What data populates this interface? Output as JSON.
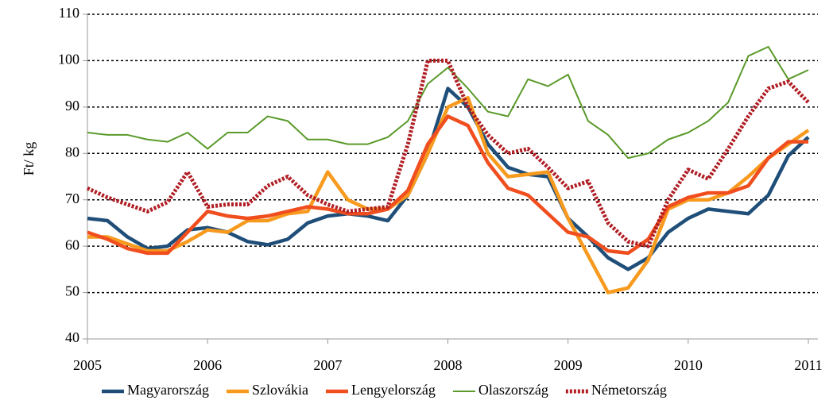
{
  "chart_data": {
    "type": "line",
    "y_label": "Ft/ kg",
    "x": [
      2005,
      2005.167,
      2005.333,
      2005.5,
      2005.667,
      2005.833,
      2006,
      2006.167,
      2006.333,
      2006.5,
      2006.667,
      2006.833,
      2007,
      2007.167,
      2007.333,
      2007.5,
      2007.667,
      2007.833,
      2008,
      2008.167,
      2008.333,
      2008.5,
      2008.667,
      2008.833,
      2009,
      2009.167,
      2009.333,
      2009.5,
      2009.667,
      2009.833,
      2010,
      2010.167,
      2010.333,
      2010.5,
      2010.667,
      2010.833,
      2011
    ],
    "series": [
      {
        "name": "Magyarország",
        "color": "#1f4e79",
        "width": 4.5,
        "style": "solid",
        "values": [
          66,
          65.5,
          62,
          59.5,
          60,
          63.5,
          64,
          63,
          61,
          60.3,
          61.5,
          65,
          66.5,
          67,
          66.5,
          65.5,
          71,
          80,
          94,
          90,
          82,
          77,
          75.5,
          75,
          66,
          62,
          57.5,
          55,
          57.5,
          63,
          66,
          68,
          67.5,
          67,
          71,
          79.5,
          83.5
        ]
      },
      {
        "name": "Szlovákia",
        "color": "#f79a1e",
        "width": 4.5,
        "style": "solid",
        "values": [
          62,
          62,
          60.5,
          59,
          59,
          61,
          63.5,
          63,
          65.5,
          65.5,
          67,
          67.5,
          76,
          70,
          68,
          68,
          71,
          80,
          90,
          92,
          80,
          75,
          75.5,
          76,
          66,
          58,
          50,
          51,
          57,
          68,
          70,
          70,
          71.5,
          75,
          79,
          82,
          85
        ]
      },
      {
        "name": "Lengyelország",
        "color": "#f04e1e",
        "width": 4.5,
        "style": "solid",
        "values": [
          63,
          61.5,
          59.5,
          58.5,
          58.5,
          63,
          67.5,
          66.5,
          66,
          66.5,
          67.5,
          68.5,
          68,
          67,
          67,
          68,
          72,
          82,
          88,
          86,
          78,
          72.5,
          71,
          67,
          63,
          62,
          59,
          58.5,
          61.5,
          68.5,
          70.5,
          71.5,
          71.5,
          73,
          79,
          82.5,
          82.5
        ]
      },
      {
        "name": "Olaszország",
        "color": "#5a9a2a",
        "width": 2,
        "style": "solid",
        "values": [
          84.5,
          84,
          84,
          83,
          82.5,
          84.5,
          81,
          84.5,
          84.5,
          88,
          87,
          83,
          83,
          82,
          82,
          83.5,
          87,
          95,
          98.5,
          94,
          89,
          88,
          96,
          94.5,
          97,
          87,
          84,
          79,
          80,
          83,
          84.5,
          87,
          91,
          101,
          103,
          96,
          98
        ]
      },
      {
        "name": "Németország",
        "color": "#b01e24",
        "width": 5,
        "style": "dotted",
        "values": [
          72.5,
          70.5,
          69,
          67.5,
          69.5,
          76,
          68.5,
          69,
          69,
          73,
          75,
          71,
          69,
          67.5,
          68,
          68.5,
          82,
          100,
          100,
          90,
          84,
          80,
          81,
          77,
          72.5,
          74,
          65,
          61,
          60,
          70,
          76.5,
          74.5,
          81,
          88,
          94,
          95.5,
          91
        ]
      }
    ],
    "xlim": [
      2005,
      2011
    ],
    "xticks": [
      2005,
      2006,
      2007,
      2008,
      2009,
      2010,
      2011
    ],
    "ylim": [
      40,
      110
    ],
    "yticks": [
      40,
      50,
      60,
      70,
      80,
      90,
      100,
      110
    ],
    "grid": true,
    "legend": "bottom"
  }
}
